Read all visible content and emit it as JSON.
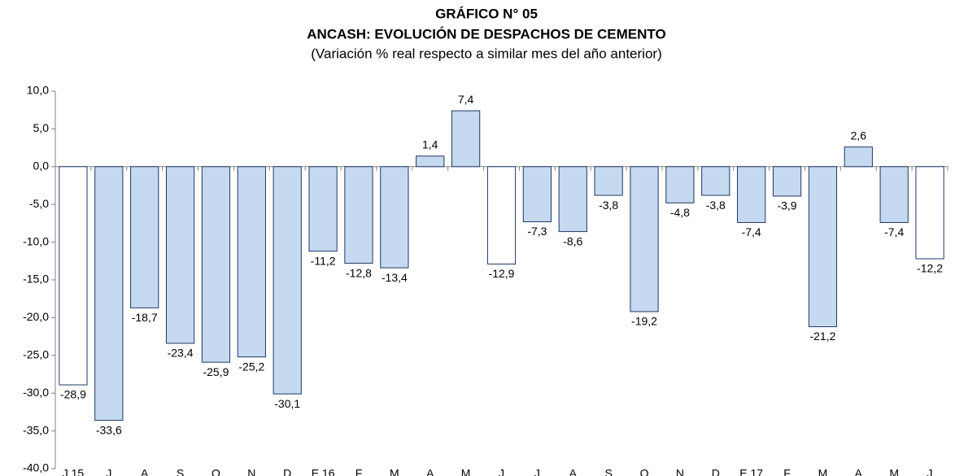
{
  "chart_data": {
    "type": "bar",
    "title": [
      "GRÁFICO N° 05",
      "ANCASH: EVOLUCIÓN DE DESPACHOS DE CEMENTO"
    ],
    "subtitle": "(Variación % real respecto a similar mes del año anterior)",
    "categories": [
      "J.15",
      "J",
      "A",
      "S",
      "O",
      "N",
      "D",
      "E.16",
      "F",
      "M",
      "A",
      "M",
      "J",
      "J",
      "A",
      "S",
      "O",
      "N",
      "D",
      "E.17",
      "F",
      "M",
      "A",
      "M",
      "J"
    ],
    "values": [
      -28.9,
      -33.6,
      -18.7,
      -23.4,
      -25.9,
      -25.2,
      -30.1,
      -11.2,
      -12.8,
      -13.4,
      1.4,
      7.4,
      -12.9,
      -7.3,
      -8.6,
      -3.8,
      -19.2,
      -4.8,
      -3.8,
      -7.4,
      -3.9,
      -21.2,
      2.6,
      -7.4,
      -12.2
    ],
    "value_labels": [
      "-28,9",
      "-33,6",
      "-18,7",
      "-23,4",
      "-25,9",
      "-25,2",
      "-30,1",
      "-11,2",
      "-12,8",
      "-13,4",
      "1,4",
      "7,4",
      "-12,9",
      "-7,3",
      "-8,6",
      "-3,8",
      "-19,2",
      "-4,8",
      "-3,8",
      "-7,4",
      "-3,9",
      "-21,2",
      "2,6",
      "-7,4",
      "-12,2"
    ],
    "colors": [
      "#ffffff",
      "#c5d9f1",
      "#c5d9f1",
      "#c5d9f1",
      "#c5d9f1",
      "#c5d9f1",
      "#c5d9f1",
      "#c5d9f1",
      "#c5d9f1",
      "#c5d9f1",
      "#c5d9f1",
      "#c5d9f1",
      "#ffffff",
      "#c5d9f1",
      "#c5d9f1",
      "#c5d9f1",
      "#c5d9f1",
      "#c5d9f1",
      "#c5d9f1",
      "#c5d9f1",
      "#c5d9f1",
      "#c5d9f1",
      "#c5d9f1",
      "#c5d9f1",
      "#ffffff"
    ],
    "edge_color": "#1f3864",
    "ylim": [
      -40,
      10
    ],
    "yticks": [
      {
        "value": -40,
        "label": "-40,0"
      },
      {
        "value": -35,
        "label": "-35,0"
      },
      {
        "value": -30,
        "label": "-30,0"
      },
      {
        "value": -25,
        "label": "-25,0"
      },
      {
        "value": -20,
        "label": "-20,0"
      },
      {
        "value": -15,
        "label": "-15,0"
      },
      {
        "value": -10,
        "label": "-10,0"
      },
      {
        "value": -5,
        "label": "-5,0"
      },
      {
        "value": 0,
        "label": "0,0"
      },
      {
        "value": 5,
        "label": "5,0"
      },
      {
        "value": 10,
        "label": "10,0"
      }
    ],
    "grid": false
  }
}
